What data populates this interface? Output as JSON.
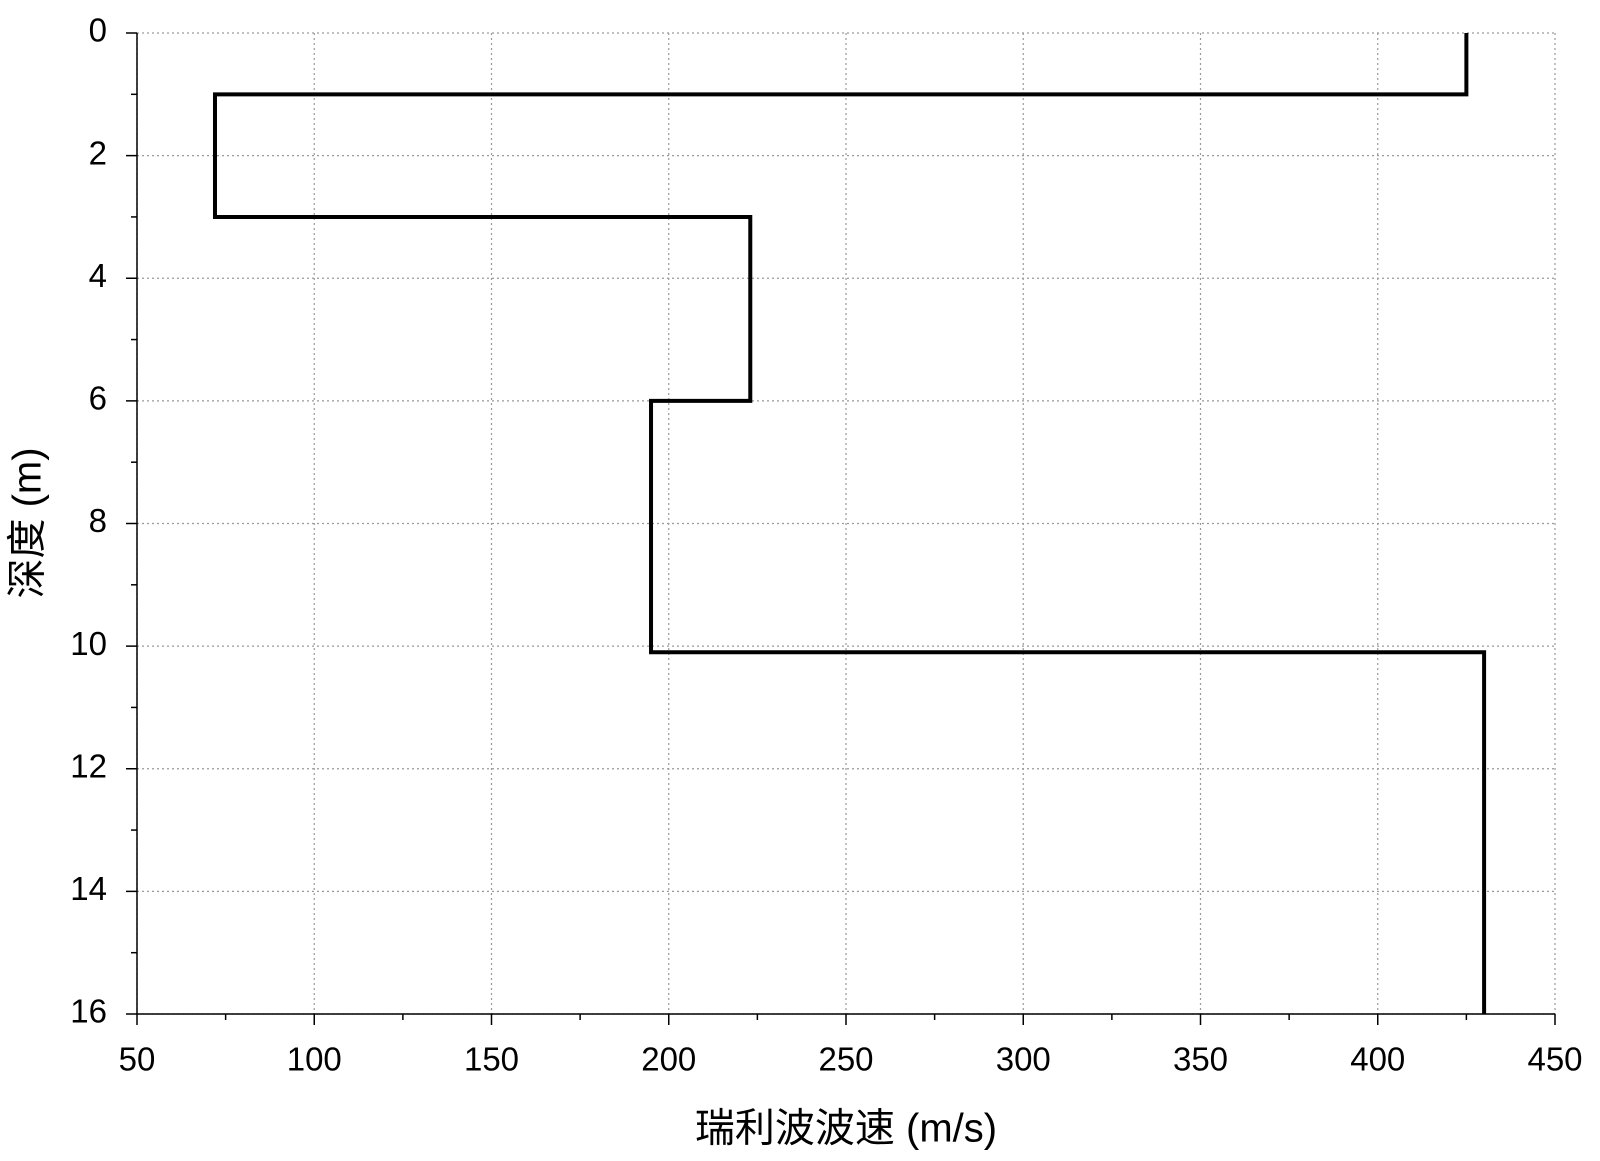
{
  "chart_data": {
    "type": "line",
    "x_label": "瑞利波波速 (m/s)",
    "y_label": "深度 (m)",
    "xlim": [
      50,
      450
    ],
    "xticks": [
      50,
      100,
      150,
      200,
      250,
      300,
      350,
      400,
      450
    ],
    "ylim": [
      0,
      16
    ],
    "yticks": [
      0,
      2,
      4,
      6,
      8,
      10,
      12,
      14,
      16
    ],
    "y_inverted": true,
    "grid": true,
    "series": [
      {
        "color": "#000000",
        "x": [
          425,
          425,
          72,
          72,
          223,
          223,
          195,
          195,
          430,
          430
        ],
        "values": [
          0,
          1,
          1,
          3,
          3,
          6,
          6,
          10.1,
          10.1,
          16
        ]
      }
    ]
  }
}
